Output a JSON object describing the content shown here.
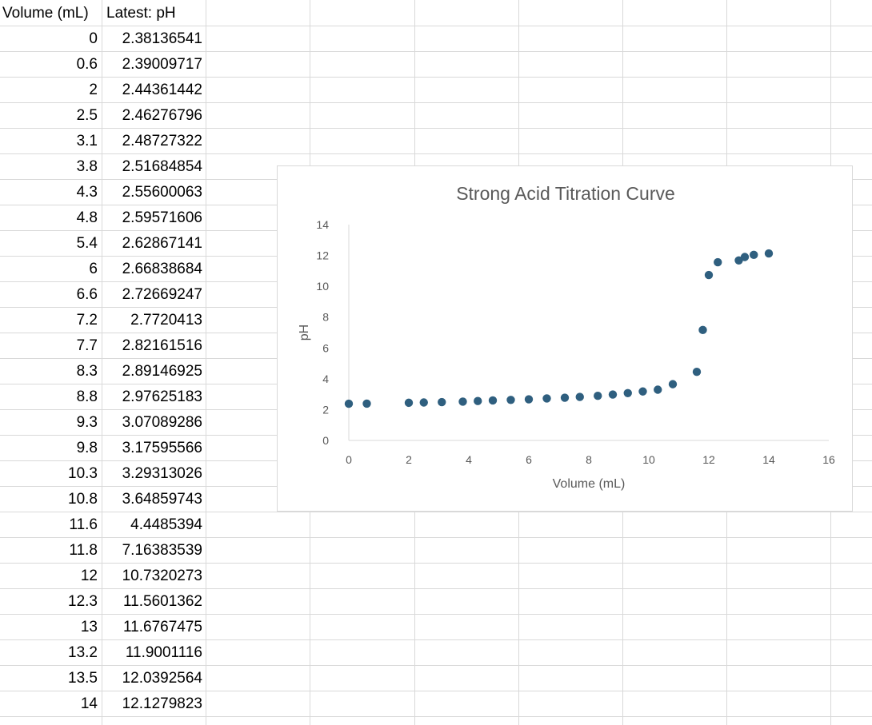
{
  "table": {
    "headers": [
      "Volume (mL)",
      "Latest: pH"
    ],
    "rows": [
      [
        "0",
        "2.38136541"
      ],
      [
        "0.6",
        "2.39009717"
      ],
      [
        "2",
        "2.44361442"
      ],
      [
        "2.5",
        "2.46276796"
      ],
      [
        "3.1",
        "2.48727322"
      ],
      [
        "3.8",
        "2.51684854"
      ],
      [
        "4.3",
        "2.55600063"
      ],
      [
        "4.8",
        "2.59571606"
      ],
      [
        "5.4",
        "2.62867141"
      ],
      [
        "6",
        "2.66838684"
      ],
      [
        "6.6",
        "2.72669247"
      ],
      [
        "7.2",
        "2.7720413"
      ],
      [
        "7.7",
        "2.82161516"
      ],
      [
        "8.3",
        "2.89146925"
      ],
      [
        "8.8",
        "2.97625183"
      ],
      [
        "9.3",
        "3.07089286"
      ],
      [
        "9.8",
        "3.17595566"
      ],
      [
        "10.3",
        "3.29313026"
      ],
      [
        "10.8",
        "3.64859743"
      ],
      [
        "11.6",
        "4.4485394"
      ],
      [
        "11.8",
        "7.16383539"
      ],
      [
        "12",
        "10.7320273"
      ],
      [
        "12.3",
        "11.5601362"
      ],
      [
        "13",
        "11.6767475"
      ],
      [
        "13.2",
        "11.9001116"
      ],
      [
        "13.5",
        "12.0392564"
      ],
      [
        "14",
        "12.1279823"
      ]
    ]
  },
  "chart_data": {
    "type": "scatter",
    "title": "Strong Acid Titration Curve",
    "xlabel": "Volume (mL)",
    "ylabel": "pH",
    "xlim": [
      0,
      16
    ],
    "ylim": [
      0,
      14
    ],
    "xticks": [
      0,
      2,
      4,
      6,
      8,
      10,
      12,
      14,
      16
    ],
    "yticks": [
      0,
      2,
      4,
      6,
      8,
      10,
      12,
      14
    ],
    "grid": false,
    "marker_color": "#2f5f7f",
    "series": [
      {
        "x": [
          0,
          0.6,
          2,
          2.5,
          3.1,
          3.8,
          4.3,
          4.8,
          5.4,
          6,
          6.6,
          7.2,
          7.7,
          8.3,
          8.8,
          9.3,
          9.8,
          10.3,
          10.8,
          11.6,
          11.8,
          12,
          12.3,
          13,
          13.2,
          13.5,
          14
        ],
        "y": [
          2.38136541,
          2.39009717,
          2.44361442,
          2.46276796,
          2.48727322,
          2.51684854,
          2.55600063,
          2.59571606,
          2.62867141,
          2.66838684,
          2.72669247,
          2.7720413,
          2.82161516,
          2.89146925,
          2.97625183,
          3.07089286,
          3.17595566,
          3.29313026,
          3.64859743,
          4.4485394,
          7.16383539,
          10.7320273,
          11.5601362,
          11.6767475,
          11.9001116,
          12.0392564,
          12.1279823
        ]
      }
    ]
  }
}
